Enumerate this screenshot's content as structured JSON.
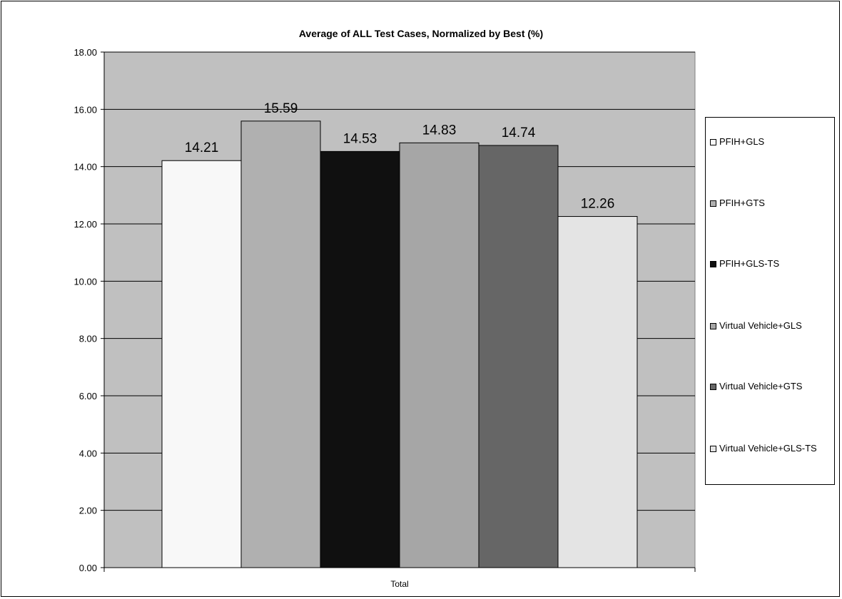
{
  "chart_data": {
    "type": "bar",
    "title": "Average of ALL Test Cases, Normalized by Best (%)",
    "categories": [
      "Total"
    ],
    "ylim": [
      0,
      18
    ],
    "yticks": [
      "0.00",
      "2.00",
      "4.00",
      "6.00",
      "8.00",
      "10.00",
      "12.00",
      "14.00",
      "16.00",
      "18.00"
    ],
    "grid": true,
    "legend_position": "right",
    "series": [
      {
        "name": "PFIH+GLS",
        "values": [
          14.21
        ],
        "label": "14.21",
        "color": "#f8f8f8"
      },
      {
        "name": "PFIH+GTS",
        "values": [
          15.59
        ],
        "label": "15.59",
        "color": "#b0b0b0"
      },
      {
        "name": "PFIH+GLS-TS",
        "values": [
          14.53
        ],
        "label": "14.53",
        "color": "#101010"
      },
      {
        "name": "Virtual Vehicle+GLS",
        "values": [
          14.83
        ],
        "label": "14.83",
        "color": "#a6a6a6"
      },
      {
        "name": "Virtual Vehicle+GTS",
        "values": [
          14.74
        ],
        "label": "14.74",
        "color": "#666666"
      },
      {
        "name": "Virtual Vehicle+GLS-TS",
        "values": [
          12.26
        ],
        "label": "12.26",
        "color": "#e4e4e4"
      }
    ],
    "plot_background": "#c0c0c0"
  }
}
